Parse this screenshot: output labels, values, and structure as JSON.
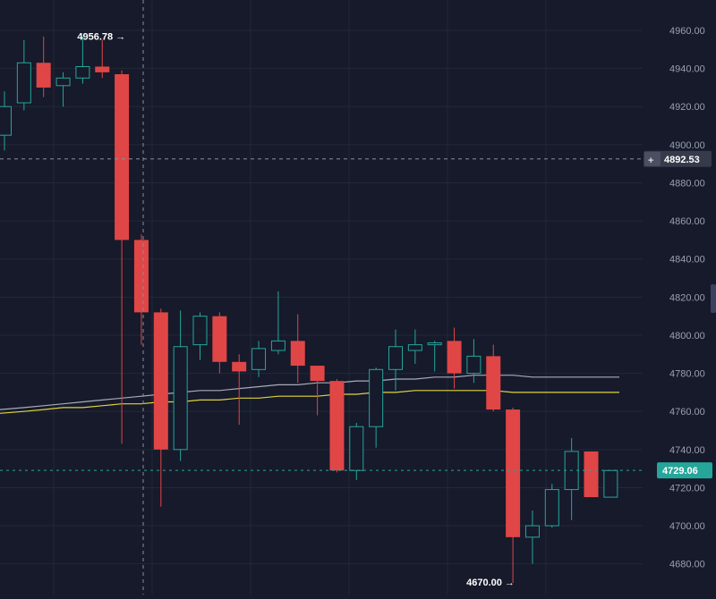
{
  "chart_data": {
    "type": "candlestick",
    "y_ticks": [
      4960,
      4940,
      4920,
      4900,
      4880,
      4860,
      4840,
      4820,
      4800,
      4780,
      4760,
      4740,
      4720,
      4700,
      4680
    ],
    "y_tick_labels": [
      "4960.00",
      "4940.00",
      "4920.00",
      "4900.00",
      "4880.00",
      "4860.00",
      "4840.00",
      "4820.00",
      "4800.00",
      "4780.00",
      "4760.00",
      "4740.00",
      "4720.00",
      "4700.00",
      "4680.00"
    ],
    "ylim": [
      4667,
      4971
    ],
    "grid": true,
    "candles": [
      {
        "o": 4905,
        "h": 4928,
        "l": 4897,
        "c": 4920
      },
      {
        "o": 4922,
        "h": 4955,
        "l": 4918,
        "c": 4943
      },
      {
        "o": 4943,
        "h": 4956.78,
        "l": 4925,
        "c": 4930
      },
      {
        "o": 4931,
        "h": 4938,
        "l": 4920,
        "c": 4935
      },
      {
        "o": 4935,
        "h": 4957,
        "l": 4932,
        "c": 4941
      },
      {
        "o": 4941,
        "h": 4955,
        "l": 4935,
        "c": 4938
      },
      {
        "o": 4937,
        "h": 4939,
        "l": 4743,
        "c": 4850
      },
      {
        "o": 4850,
        "h": 4853,
        "l": 4795,
        "c": 4812
      },
      {
        "o": 4812,
        "h": 4814,
        "l": 4710,
        "c": 4740
      },
      {
        "o": 4740,
        "h": 4813,
        "l": 4734,
        "c": 4794
      },
      {
        "o": 4795,
        "h": 4812,
        "l": 4787,
        "c": 4810
      },
      {
        "o": 4810,
        "h": 4812,
        "l": 4780,
        "c": 4786
      },
      {
        "o": 4786,
        "h": 4790,
        "l": 4753,
        "c": 4781
      },
      {
        "o": 4782,
        "h": 4797,
        "l": 4778,
        "c": 4793
      },
      {
        "o": 4792,
        "h": 4823,
        "l": 4790,
        "c": 4797
      },
      {
        "o": 4797,
        "h": 4811,
        "l": 4775,
        "c": 4784
      },
      {
        "o": 4784,
        "h": 4784,
        "l": 4758,
        "c": 4776
      },
      {
        "o": 4776,
        "h": 4777,
        "l": 4728,
        "c": 4729
      },
      {
        "o": 4729,
        "h": 4754,
        "l": 4724,
        "c": 4752
      },
      {
        "o": 4752,
        "h": 4783,
        "l": 4741,
        "c": 4782
      },
      {
        "o": 4782,
        "h": 4803,
        "l": 4771,
        "c": 4794
      },
      {
        "o": 4792,
        "h": 4803,
        "l": 4785,
        "c": 4795
      },
      {
        "o": 4795,
        "h": 4797,
        "l": 4781,
        "c": 4796
      },
      {
        "o": 4797,
        "h": 4804,
        "l": 4772,
        "c": 4780
      },
      {
        "o": 4780,
        "h": 4798,
        "l": 4775,
        "c": 4789
      },
      {
        "o": 4789,
        "h": 4795,
        "l": 4760,
        "c": 4761
      },
      {
        "o": 4761,
        "h": 4762,
        "l": 4670,
        "c": 4694
      },
      {
        "o": 4694,
        "h": 4708,
        "l": 4680,
        "c": 4700
      },
      {
        "o": 4700,
        "h": 4722,
        "l": 4699,
        "c": 4719
      },
      {
        "o": 4719,
        "h": 4746,
        "l": 4703,
        "c": 4739
      },
      {
        "o": 4739,
        "h": 4739,
        "l": 4715,
        "c": 4715
      },
      {
        "o": 4715,
        "h": 4729,
        "l": 4715,
        "c": 4729
      }
    ],
    "moving_averages": [
      {
        "color": "#a8abb8",
        "values": [
          4761,
          4762,
          4763,
          4764,
          4765,
          4766,
          4767,
          4768,
          4769,
          4770,
          4771,
          4771,
          4772,
          4773,
          4774,
          4774,
          4775,
          4775,
          4776,
          4776,
          4777,
          4777,
          4778,
          4778,
          4779,
          4779,
          4779,
          4778,
          4778,
          4778,
          4778,
          4778
        ]
      },
      {
        "color": "#e0d33a",
        "values": [
          4759,
          4760,
          4761,
          4762,
          4762,
          4763,
          4764,
          4764,
          4765,
          4765,
          4766,
          4766,
          4767,
          4767,
          4768,
          4768,
          4768,
          4769,
          4769,
          4770,
          4770,
          4771,
          4771,
          4771,
          4771,
          4771,
          4770,
          4770,
          4770,
          4770,
          4770,
          4770
        ]
      }
    ],
    "annotations": {
      "high_label": "4956.78 →",
      "low_label": "4670.00 →"
    },
    "crosshair": {
      "price": 4892.53,
      "price_label": "4892.53",
      "plus_glyph": "+"
    },
    "last_price": {
      "value": 4729.06,
      "label": "4729.06"
    },
    "colors": {
      "background": "#161a2b",
      "grid": "#232839",
      "up": "#26a69a",
      "down": "#e04646",
      "last_price_badge": "#26a69a",
      "crosshair_badge": "#363a4a"
    }
  }
}
